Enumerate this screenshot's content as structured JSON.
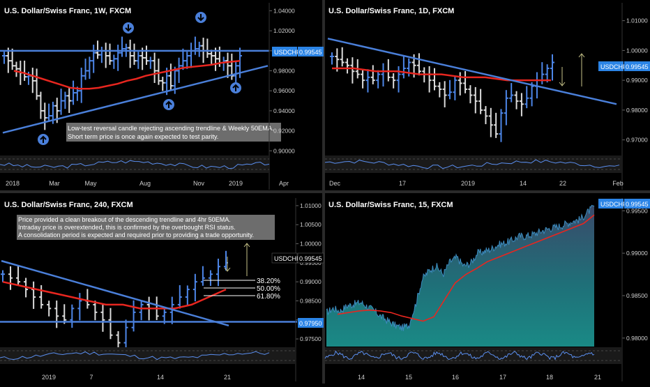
{
  "colors": {
    "background": "#000000",
    "ema": "#e8261f",
    "trendline": "#4a7fd9",
    "bar_up": "#4d86e8",
    "bar_down": "#dcdcdc",
    "rsi": "#5b8ff0",
    "price_tag": "#2b84e6",
    "area_fill": "#197a7a",
    "text": "#ffffff",
    "axis_text": "#cfcfcf",
    "note_bg": "#9b9b9b"
  },
  "chart_data": [
    {
      "id": "weekly",
      "type": "ohlc",
      "title": "U.S. Dollar/Swiss Franc, 1W, FXCM",
      "price_tag": {
        "symbol": "USDCHF",
        "value": "0.99545"
      },
      "y_ticks": [
        "1.04000",
        "1.02000",
        "1.00000",
        "0.98000",
        "0.96000",
        "0.94000",
        "0.92000",
        "0.90000"
      ],
      "y_tick_values": [
        1.04,
        1.02,
        1.0,
        0.98,
        0.96,
        0.94,
        0.92,
        0.9
      ],
      "ylim": [
        0.896,
        1.048
      ],
      "x_ticks": [
        "2018",
        "Mar",
        "May",
        "Aug",
        "Nov",
        "2019",
        "Apr"
      ],
      "note": [
        "Low-test reversal candle rejecting ascending trendline & Weekly 50EMA.",
        "Short term price is once again expected to test parity."
      ],
      "icons": [
        "arrow-down-icon",
        "arrow-down-icon",
        "arrow-down-icon",
        "arrow-up-icon",
        "arrow-up-icon",
        "arrow-up-icon"
      ],
      "closes": [
        0.995,
        0.99,
        0.985,
        0.982,
        0.978,
        0.974,
        0.975,
        0.97,
        0.955,
        0.94,
        0.933,
        0.935,
        0.945,
        0.94,
        0.95,
        0.955,
        0.95,
        0.958,
        0.96,
        0.975,
        0.98,
        0.99,
        0.998,
        0.996,
        1.0,
        0.995,
        0.99,
        0.992,
        0.998,
        1.002,
        1.003,
        0.995,
        0.99,
        0.995,
        0.993,
        0.99,
        0.99,
        0.98,
        0.97,
        0.968,
        0.975,
        0.965,
        0.98,
        0.985,
        0.99,
        0.995,
        1.0,
        1.002,
        1.005,
        1.0,
        0.997,
        0.995,
        0.992,
        0.988,
        0.99,
        0.985,
        0.975,
        0.985,
        0.995
      ],
      "ema": [
        0.98,
        0.978,
        0.975,
        0.972,
        0.969,
        0.966,
        0.963,
        0.962,
        0.962,
        0.963,
        0.965,
        0.967,
        0.97,
        0.972,
        0.975,
        0.977,
        0.979,
        0.981,
        0.983,
        0.984,
        0.985,
        0.986,
        0.988,
        0.989,
        0.99
      ],
      "trendlines": [
        {
          "kind": "horizontal",
          "y": 1.0
        },
        {
          "kind": "ascending",
          "x": [
            0,
            1
          ],
          "y": [
            0.918,
            0.985
          ]
        }
      ]
    },
    {
      "id": "daily",
      "type": "ohlc",
      "title": "U.S. Dollar/Swiss Franc, 1D, FXCM",
      "price_tag": {
        "symbol": "USDCHF",
        "value": "0.99545"
      },
      "y_ticks": [
        "1.01000",
        "1.00000",
        "0.99000",
        "0.98000",
        "0.97000"
      ],
      "y_tick_values": [
        1.01,
        1.0,
        0.99,
        0.98,
        0.97
      ],
      "ylim": [
        0.965,
        1.016
      ],
      "x_ticks": [
        "Dec",
        "17",
        "2019",
        "14",
        "22",
        "Feb"
      ],
      "closes": [
        0.998,
        0.997,
        0.996,
        0.995,
        0.993,
        0.992,
        0.99,
        0.991,
        0.99,
        0.992,
        0.993,
        0.991,
        0.99,
        0.992,
        0.994,
        0.996,
        0.995,
        0.993,
        0.992,
        0.99,
        0.988,
        0.987,
        0.985,
        0.986,
        0.99,
        0.989,
        0.987,
        0.985,
        0.983,
        0.98,
        0.978,
        0.975,
        0.972,
        0.979,
        0.984,
        0.985,
        0.983,
        0.982,
        0.984,
        0.988,
        0.99,
        0.992,
        0.994,
        0.996
      ],
      "ema": [
        0.994,
        0.994,
        0.993,
        0.993,
        0.992,
        0.992,
        0.991,
        0.991,
        0.99,
        0.99,
        0.99
      ],
      "trendlines": [
        {
          "kind": "descending",
          "x": [
            0,
            1
          ],
          "y": [
            1.004,
            0.982
          ]
        }
      ]
    },
    {
      "id": "h4",
      "type": "ohlc",
      "title": "U.S. Dollar/Swiss Franc, 240, FXCM",
      "price_tag": {
        "symbol": "USDCHF",
        "value": "0.99545"
      },
      "level_tag": "0.97950",
      "y_ticks": [
        "1.01000",
        "1.00500",
        "1.00000",
        "0.99500",
        "0.99000",
        "0.98500",
        "0.98000",
        "0.97500"
      ],
      "y_tick_values": [
        1.01,
        1.005,
        1.0,
        0.995,
        0.99,
        0.985,
        0.98,
        0.975
      ],
      "ylim": [
        0.973,
        1.012
      ],
      "x_ticks": [
        "2019",
        "7",
        "14",
        "21"
      ],
      "fib_levels": [
        "38.20%",
        "50.00%",
        "61.80%"
      ],
      "note": [
        "Price provided a clean breakout of the descending trendline and 4hr 50EMA.",
        "Intraday price is overextended, this is confirmed by the overbought RSI status.",
        "A consolidation period is expected and required prior to providing a trade opportunity."
      ],
      "closes": [
        0.992,
        0.991,
        0.99,
        0.988,
        0.986,
        0.984,
        0.983,
        0.981,
        0.98,
        0.983,
        0.985,
        0.984,
        0.982,
        0.98,
        0.976,
        0.974,
        0.978,
        0.982,
        0.984,
        0.983,
        0.981,
        0.982,
        0.984,
        0.986,
        0.988,
        0.99,
        0.991,
        0.992,
        0.994,
        0.995
      ],
      "ema": [
        0.99,
        0.989,
        0.988,
        0.987,
        0.986,
        0.985,
        0.984,
        0.984,
        0.983,
        0.983,
        0.983,
        0.984,
        0.986,
        0.988
      ],
      "trendlines": [
        {
          "kind": "horizontal",
          "y": 0.9795
        },
        {
          "kind": "descending",
          "x": [
            0,
            1
          ],
          "y": [
            0.9955,
            0.9785
          ]
        }
      ]
    },
    {
      "id": "m15",
      "type": "area",
      "title": "U.S. Dollar/Swiss Franc, 15, FXCM",
      "price_tag": {
        "symbol": "USDCHF",
        "value": "0.99545"
      },
      "y_ticks": [
        "0.99500",
        "0.99000",
        "0.98500",
        "0.98000"
      ],
      "y_tick_values": [
        0.995,
        0.99,
        0.985,
        0.98
      ],
      "ylim": [
        0.979,
        0.9965
      ],
      "x_ticks": [
        "14",
        "15",
        "16",
        "17",
        "18",
        "21"
      ],
      "series": [
        0.983,
        0.9835,
        0.9832,
        0.9838,
        0.984,
        0.9842,
        0.9837,
        0.9832,
        0.9825,
        0.982,
        0.9815,
        0.9812,
        0.9815,
        0.984,
        0.987,
        0.988,
        0.9885,
        0.9875,
        0.989,
        0.9895,
        0.9885,
        0.9888,
        0.99,
        0.9902,
        0.9905,
        0.991,
        0.9912,
        0.9915,
        0.992,
        0.992,
        0.9922,
        0.9925,
        0.9928,
        0.993,
        0.9932,
        0.9935,
        0.9938,
        0.994,
        0.9948,
        0.9955
      ],
      "ema": [
        0.9828,
        0.983,
        0.9832,
        0.9833,
        0.9832,
        0.983,
        0.9826,
        0.9823,
        0.982,
        0.9825,
        0.9845,
        0.9865,
        0.9875,
        0.9882,
        0.989,
        0.9895,
        0.99,
        0.9905,
        0.991,
        0.9915,
        0.992,
        0.9925,
        0.993,
        0.9935,
        0.9945
      ]
    }
  ]
}
